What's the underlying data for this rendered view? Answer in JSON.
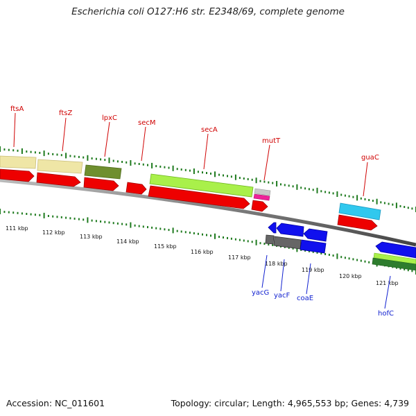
{
  "title": "Escherichia coli O127:H6 str. E2348/69, complete genome",
  "footer": {
    "accession": "Accession: NC_011601",
    "summary": "Topology: circular; Length: 4,965,553 bp; Genes: 4,739"
  },
  "colors": {
    "backbone": "#777777",
    "label_top": "#d00000",
    "label_bottom": "#1020d0",
    "tick": "#1e7a1e"
  },
  "scale_ticks": [
    "111 kbp",
    "112 kbp",
    "113 kbp",
    "114 kbp",
    "115 kbp",
    "116 kbp",
    "117 kbp",
    "118 kbp",
    "119 kbp",
    "120 kbp",
    "121 kbp"
  ],
  "gene_labels_top": [
    "ftsA",
    "ftsZ",
    "lpxC",
    "secM",
    "secA",
    "mutT",
    "guaC"
  ],
  "gene_labels_bottom": [
    "yacG",
    "yacF",
    "coaE",
    "hofC"
  ]
}
